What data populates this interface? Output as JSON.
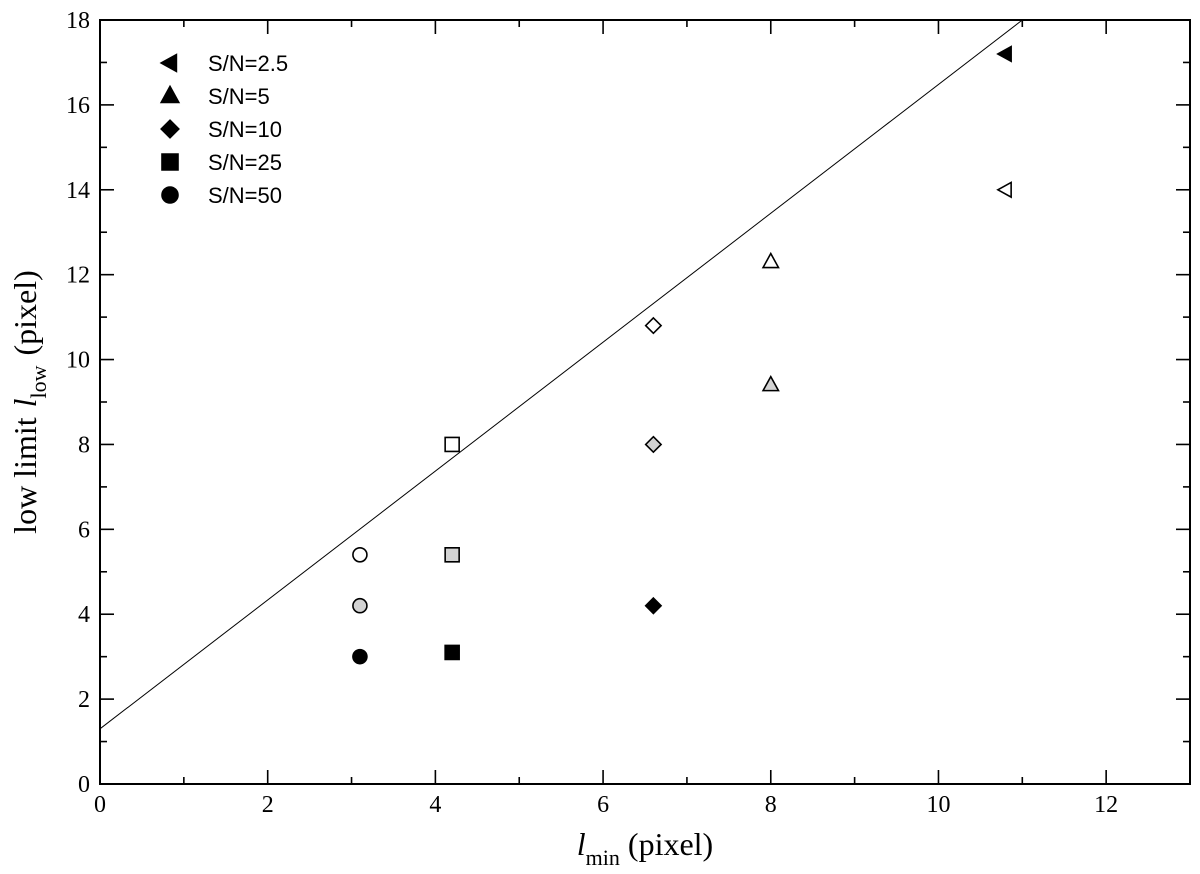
{
  "chart_data": {
    "type": "scatter",
    "xlabel": {
      "var": "l",
      "sub": "min",
      "unit": "(pixel)"
    },
    "ylabel": {
      "prefix": "low limit",
      "var": "l",
      "sub": "low",
      "unit": "(pixel)"
    },
    "xlim": [
      0,
      13
    ],
    "ylim": [
      0,
      18
    ],
    "x_major_ticks": [
      0,
      2,
      4,
      6,
      8,
      10,
      12
    ],
    "x_tick_labels": [
      "0",
      "2",
      "4",
      "6",
      "8",
      "10",
      "12"
    ],
    "y_major_ticks": [
      0,
      2,
      4,
      6,
      8,
      10,
      12,
      14,
      16,
      18
    ],
    "y_tick_labels": [
      "0",
      "2",
      "4",
      "6",
      "8",
      "10",
      "12",
      "14",
      "16",
      "18"
    ],
    "x_minor_step": 1,
    "y_minor_step": 1,
    "grid": false,
    "legend_position": "top-left",
    "fill_colors": {
      "black": "#000000",
      "gray": "#d3d3d3",
      "white": "#ffffff"
    },
    "legend": [
      {
        "label": "S/N=2.5",
        "marker": "triangle-left"
      },
      {
        "label": "S/N=5",
        "marker": "triangle-up"
      },
      {
        "label": "S/N=10",
        "marker": "diamond"
      },
      {
        "label": "S/N=25",
        "marker": "square"
      },
      {
        "label": "S/N=50",
        "marker": "circle"
      }
    ],
    "series": [
      {
        "name": "S/N=2.5",
        "marker": "triangle-left",
        "points": [
          {
            "x": 10.8,
            "y": 17.2,
            "fill": "black"
          },
          {
            "x": 10.8,
            "y": 14.0,
            "fill": "white"
          }
        ]
      },
      {
        "name": "S/N=5",
        "marker": "triangle-up",
        "points": [
          {
            "x": 8.0,
            "y": 12.3,
            "fill": "white"
          },
          {
            "x": 8.0,
            "y": 9.4,
            "fill": "gray"
          }
        ]
      },
      {
        "name": "S/N=10",
        "marker": "diamond",
        "points": [
          {
            "x": 6.6,
            "y": 10.8,
            "fill": "white"
          },
          {
            "x": 6.6,
            "y": 8.0,
            "fill": "gray"
          },
          {
            "x": 6.6,
            "y": 4.2,
            "fill": "black"
          }
        ]
      },
      {
        "name": "S/N=25",
        "marker": "square",
        "points": [
          {
            "x": 4.2,
            "y": 8.0,
            "fill": "white"
          },
          {
            "x": 4.2,
            "y": 5.4,
            "fill": "gray"
          },
          {
            "x": 4.2,
            "y": 3.1,
            "fill": "black"
          }
        ]
      },
      {
        "name": "S/N=50",
        "marker": "circle",
        "points": [
          {
            "x": 3.1,
            "y": 5.4,
            "fill": "white"
          },
          {
            "x": 3.1,
            "y": 4.2,
            "fill": "gray"
          },
          {
            "x": 3.1,
            "y": 3.0,
            "fill": "black"
          }
        ]
      }
    ],
    "reference_line": {
      "x": [
        0,
        11
      ],
      "y": [
        1.3,
        18.0
      ]
    }
  }
}
